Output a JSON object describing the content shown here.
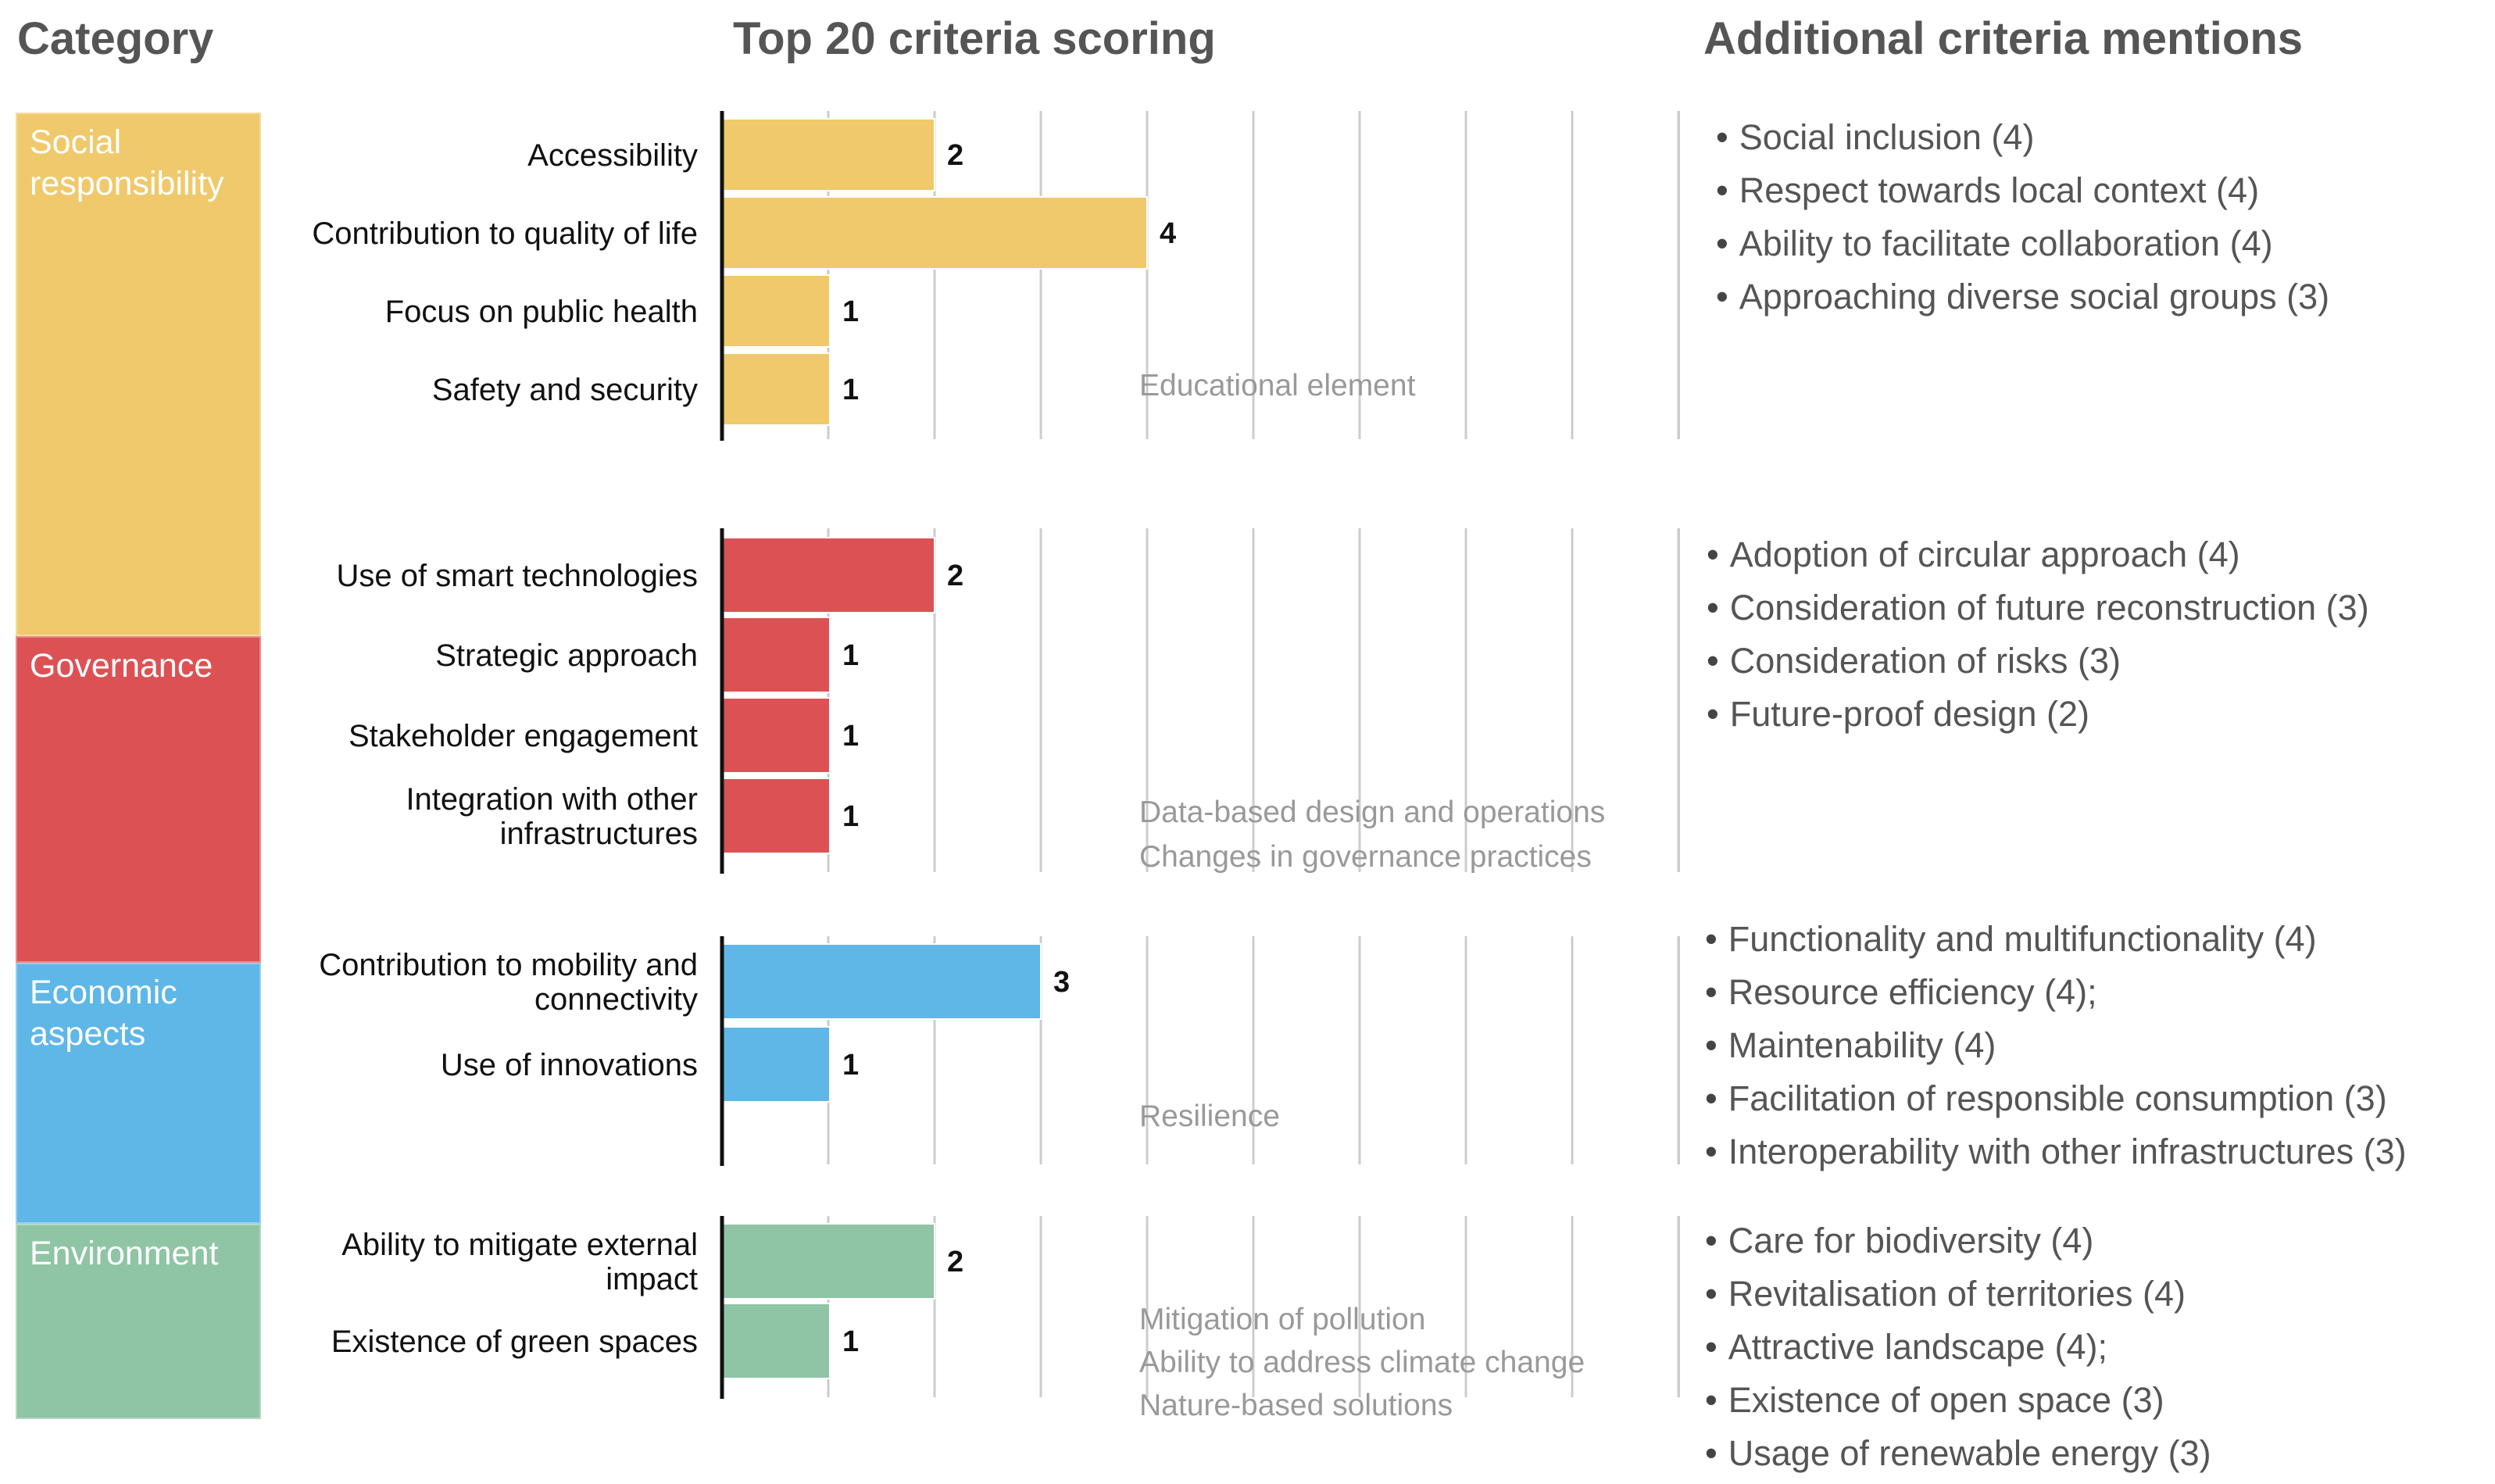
{
  "headers": {
    "category": "Category",
    "scoring": "Top 20 criteria scoring",
    "additional": "Additional criteria mentions"
  },
  "colors": {
    "social": "#EFC96B",
    "governance": "#DC5254",
    "economic": "#5EB7E7",
    "environment": "#8FC4A5",
    "gridline": "#CCCCCC",
    "axis": "#111111",
    "note": "#999999"
  },
  "categories": [
    {
      "label": "Social responsibility",
      "color_key": "social"
    },
    {
      "label": "Governance",
      "color_key": "governance"
    },
    {
      "label": "Economic aspects",
      "color_key": "economic"
    },
    {
      "label": "Environment",
      "color_key": "environment"
    }
  ],
  "chart_data": {
    "type": "bar",
    "orientation": "horizontal",
    "title": "Top 20 criteria scoring",
    "xlabel": "",
    "ylabel": "",
    "xlim": [
      0,
      9
    ],
    "grid": true,
    "groups": [
      {
        "category": "Social responsibility",
        "color_key": "social",
        "bars": [
          {
            "label": "Accessibility",
            "value": 2
          },
          {
            "label": "Contribution to quality of life",
            "value": 4
          },
          {
            "label": "Focus on public health",
            "value": 1
          },
          {
            "label": "Safety and security",
            "value": 1
          }
        ],
        "notes": [
          "Educational element"
        ]
      },
      {
        "category": "Governance",
        "color_key": "governance",
        "bars": [
          {
            "label": "Use of smart technologies",
            "value": 2
          },
          {
            "label": "Strategic approach",
            "value": 1
          },
          {
            "label": "Stakeholder engagement",
            "value": 1
          },
          {
            "label": "Integration with other infrastructures",
            "value": 1
          }
        ],
        "notes": [
          "Data-based design and operations",
          "Changes in governance practices"
        ]
      },
      {
        "category": "Economic aspects",
        "color_key": "economic",
        "bars": [
          {
            "label": "Contribution to mobility and connectivity",
            "value": 3
          },
          {
            "label": "Use of innovations",
            "value": 1
          }
        ],
        "notes": [
          "Resilience"
        ]
      },
      {
        "category": "Environment",
        "color_key": "environment",
        "bars": [
          {
            "label": "Ability to mitigate external impact",
            "value": 2
          },
          {
            "label": "Existence of green spaces",
            "value": 1
          }
        ],
        "notes": [
          "Mitigation of pollution",
          "Ability to address climate change",
          "Nature-based solutions"
        ]
      }
    ]
  },
  "additional": [
    [
      "Social inclusion (4)",
      "Respect towards local context (4)",
      "Ability to facilitate collaboration (4)",
      "Approaching diverse social groups (3)"
    ],
    [
      "Adoption of circular approach (4)",
      "Consideration of future reconstruction (3)",
      "Consideration of risks (3)",
      "Future-proof design (2)"
    ],
    [
      "Functionality and multifunctionality (4)",
      "Resource efficiency (4);",
      "Maintenability (4)",
      "Facilitation of responsible consumption (3)",
      "Interoperability with other infrastructures (3)"
    ],
    [
      "Care for biodiversity (4)",
      "Revitalisation of territories (4)",
      "Attractive landscape (4);",
      "Existence of open space (3)",
      "Usage of renewable energy (3)"
    ]
  ]
}
